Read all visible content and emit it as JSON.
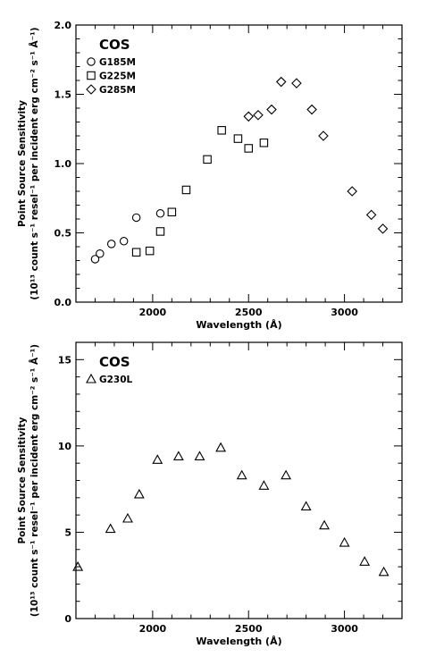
{
  "chart_data": [
    {
      "type": "scatter",
      "title": "",
      "instrument_label": "COS",
      "xlabel": "Wavelength (Å)",
      "ylabel_line1": "Point Source Sensitivity",
      "ylabel_line2": "(10¹³ count s⁻¹ resel⁻¹ per incident erg cm⁻² s⁻¹ Å⁻¹)",
      "xlim": [
        1600,
        3300
      ],
      "ylim": [
        0.0,
        2.0
      ],
      "xticks": [
        1500,
        2000,
        2500,
        3000
      ],
      "xtick_labels": [
        "",
        "2000",
        "2500",
        "3000"
      ],
      "yticks": [
        0.0,
        0.5,
        1.0,
        1.5,
        2.0
      ],
      "ytick_labels": [
        "0.0",
        "0.5",
        "1.0",
        "1.5",
        "2.0"
      ],
      "legend_position": "top-left",
      "series": [
        {
          "name": "G185M",
          "marker": "circle",
          "x": [
            1700,
            1725,
            1785,
            1850,
            1915,
            2040
          ],
          "y": [
            0.31,
            0.35,
            0.42,
            0.44,
            0.61,
            0.64
          ]
        },
        {
          "name": "G225M",
          "marker": "square",
          "x": [
            1915,
            1985,
            2040,
            2100,
            2175,
            2285,
            2360,
            2445,
            2500,
            2580
          ],
          "y": [
            0.36,
            0.37,
            0.51,
            0.65,
            0.81,
            1.03,
            1.24,
            1.18,
            1.11,
            1.15
          ]
        },
        {
          "name": "G285M",
          "marker": "diamond",
          "x": [
            2500,
            2550,
            2620,
            2670,
            2750,
            2830,
            2890,
            3040,
            3140,
            3200
          ],
          "y": [
            1.34,
            1.35,
            1.39,
            1.59,
            1.58,
            1.39,
            1.2,
            0.8,
            0.63,
            0.53
          ]
        }
      ]
    },
    {
      "type": "scatter",
      "title": "",
      "instrument_label": "COS",
      "xlabel": "Wavelength (Å)",
      "ylabel_line1": "Point Source Sensitivity",
      "ylabel_line2": "(10¹³ count s⁻¹ resel⁻¹ per incident erg cm⁻² s⁻¹ Å⁻¹)",
      "xlim": [
        1600,
        3300
      ],
      "ylim": [
        0,
        16
      ],
      "xticks": [
        2000,
        2500,
        3000
      ],
      "xtick_labels": [
        "2000",
        "2500",
        "3000"
      ],
      "yticks": [
        0,
        5,
        10,
        15
      ],
      "ytick_labels": [
        "0",
        "5",
        "10",
        "15"
      ],
      "legend_position": "top-left",
      "series": [
        {
          "name": "G230L",
          "marker": "triangle",
          "x": [
            1610,
            1780,
            1870,
            1930,
            2025,
            2135,
            2245,
            2355,
            2465,
            2580,
            2695,
            2800,
            2895,
            3000,
            3105,
            3205
          ],
          "y": [
            3.0,
            5.2,
            5.8,
            7.2,
            9.2,
            9.4,
            9.4,
            9.9,
            8.3,
            7.7,
            8.3,
            6.5,
            5.4,
            4.4,
            3.3,
            2.7
          ]
        }
      ]
    }
  ]
}
